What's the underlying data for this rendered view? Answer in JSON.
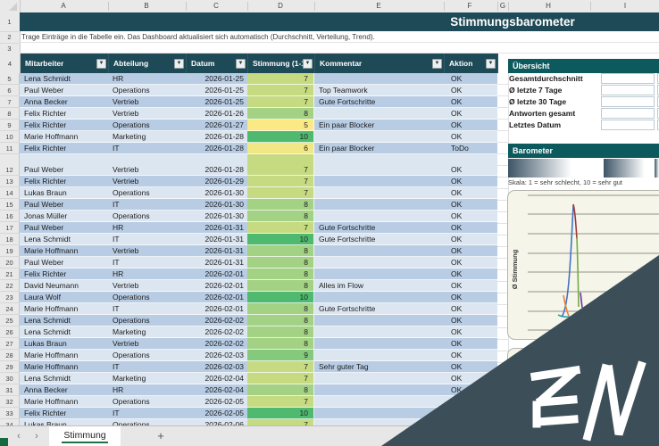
{
  "titlebar": {
    "title": "Stimmungsbarometer"
  },
  "instruction": "Trage Einträge in die Tabelle ein. Das Dashboard aktualisiert sich automatisch (Durchschnitt, Verteilung, Trend).",
  "column_letters": [
    "A",
    "B",
    "C",
    "D",
    "E",
    "F",
    "G",
    "H",
    "I"
  ],
  "gutter_rows": [
    "1",
    "2",
    "3",
    "4"
  ],
  "table": {
    "headers": {
      "mitarbeiter": "Mitarbeiter",
      "abteilung": "Abteilung",
      "datum": "Datum",
      "stimmung": "Stimmung (1-1",
      "kommentar": "Kommentar",
      "aktion": "Aktion"
    },
    "rows": [
      {
        "n": 5,
        "name": "Lena Schmidt",
        "dept": "HR",
        "date": "2026-01-25",
        "mood": 7,
        "comment": "",
        "action": "OK"
      },
      {
        "n": 6,
        "name": "Paul Weber",
        "dept": "Operations",
        "date": "2026-01-25",
        "mood": 7,
        "comment": "Top Teamwork",
        "action": "OK"
      },
      {
        "n": 7,
        "name": "Anna Becker",
        "dept": "Vertrieb",
        "date": "2026-01-25",
        "mood": 7,
        "comment": "Gute Fortschritte",
        "action": "OK"
      },
      {
        "n": 8,
        "name": "Felix Richter",
        "dept": "Vertrieb",
        "date": "2026-01-26",
        "mood": 8,
        "comment": "",
        "action": "OK"
      },
      {
        "n": 9,
        "name": "Felix Richter",
        "dept": "Operations",
        "date": "2026-01-27",
        "mood": 5,
        "comment": "Ein paar Blocker",
        "action": "OK"
      },
      {
        "n": 10,
        "name": "Marie Hoffmann",
        "dept": "Marketing",
        "date": "2026-01-28",
        "mood": 10,
        "comment": "",
        "action": "OK"
      },
      {
        "n": 11,
        "name": "Felix Richter",
        "dept": "IT",
        "date": "2026-01-28",
        "mood": 6,
        "comment": "Ein paar Blocker",
        "action": "ToDo"
      },
      {
        "n": 12,
        "name": "Paul Weber",
        "dept": "Vertrieb",
        "date": "2026-01-28",
        "mood": 7,
        "comment": "",
        "action": "OK",
        "tall": true
      },
      {
        "n": 13,
        "name": "Felix Richter",
        "dept": "Vertrieb",
        "date": "2026-01-29",
        "mood": 7,
        "comment": "",
        "action": "OK"
      },
      {
        "n": 14,
        "name": "Lukas Braun",
        "dept": "Operations",
        "date": "2026-01-30",
        "mood": 7,
        "comment": "",
        "action": "OK"
      },
      {
        "n": 15,
        "name": "Paul Weber",
        "dept": "IT",
        "date": "2026-01-30",
        "mood": 8,
        "comment": "",
        "action": "OK"
      },
      {
        "n": 16,
        "name": "Jonas Müller",
        "dept": "Operations",
        "date": "2026-01-30",
        "mood": 8,
        "comment": "",
        "action": "OK"
      },
      {
        "n": 17,
        "name": "Paul Weber",
        "dept": "HR",
        "date": "2026-01-31",
        "mood": 7,
        "comment": "Gute Fortschritte",
        "action": "OK"
      },
      {
        "n": 18,
        "name": "Lena Schmidt",
        "dept": "IT",
        "date": "2026-01-31",
        "mood": 10,
        "comment": "Gute Fortschritte",
        "action": "OK"
      },
      {
        "n": 19,
        "name": "Marie Hoffmann",
        "dept": "Vertrieb",
        "date": "2026-01-31",
        "mood": 8,
        "comment": "",
        "action": "OK"
      },
      {
        "n": 20,
        "name": "Paul Weber",
        "dept": "IT",
        "date": "2026-01-31",
        "mood": 8,
        "comment": "",
        "action": "OK"
      },
      {
        "n": 21,
        "name": "Felix Richter",
        "dept": "HR",
        "date": "2026-02-01",
        "mood": 8,
        "comment": "",
        "action": "OK"
      },
      {
        "n": 22,
        "name": "David Neumann",
        "dept": "Vertrieb",
        "date": "2026-02-01",
        "mood": 8,
        "comment": "Alles im Flow",
        "action": "OK"
      },
      {
        "n": 23,
        "name": "Laura Wolf",
        "dept": "Operations",
        "date": "2026-02-01",
        "mood": 10,
        "comment": "",
        "action": "OK"
      },
      {
        "n": 24,
        "name": "Marie Hoffmann",
        "dept": "IT",
        "date": "2026-02-01",
        "mood": 8,
        "comment": "Gute Fortschritte",
        "action": "OK"
      },
      {
        "n": 25,
        "name": "Lena Schmidt",
        "dept": "Operations",
        "date": "2026-02-02",
        "mood": 8,
        "comment": "",
        "action": "OK"
      },
      {
        "n": 26,
        "name": "Lena Schmidt",
        "dept": "Marketing",
        "date": "2026-02-02",
        "mood": 8,
        "comment": "",
        "action": "OK"
      },
      {
        "n": 27,
        "name": "Lukas Braun",
        "dept": "Vertrieb",
        "date": "2026-02-02",
        "mood": 8,
        "comment": "",
        "action": "OK"
      },
      {
        "n": 28,
        "name": "Marie Hoffmann",
        "dept": "Operations",
        "date": "2026-02-03",
        "mood": 9,
        "comment": "",
        "action": "OK"
      },
      {
        "n": 29,
        "name": "Marie Hoffmann",
        "dept": "IT",
        "date": "2026-02-03",
        "mood": 7,
        "comment": "Sehr guter Tag",
        "action": "OK"
      },
      {
        "n": 30,
        "name": "Lena Schmidt",
        "dept": "Marketing",
        "date": "2026-02-04",
        "mood": 7,
        "comment": "",
        "action": "OK"
      },
      {
        "n": 31,
        "name": "Anna Becker",
        "dept": "HR",
        "date": "2026-02-04",
        "mood": 8,
        "comment": "",
        "action": "OK"
      },
      {
        "n": 32,
        "name": "Marie Hoffmann",
        "dept": "Operations",
        "date": "2026-02-05",
        "mood": 7,
        "comment": "",
        "action": "OK"
      },
      {
        "n": 33,
        "name": "Felix Richter",
        "dept": "IT",
        "date": "2026-02-05",
        "mood": 10,
        "comment": "",
        "action": ""
      },
      {
        "n": 34,
        "name": "Lukas Braun",
        "dept": "Operations",
        "date": "2026-02-06",
        "mood": 7,
        "comment": "",
        "action": ""
      }
    ]
  },
  "overview": {
    "title": "Übersicht",
    "labels": [
      "Gesamtdurchschnitt",
      "Ø letzte 7 Tage",
      "Ø letzte 30 Tage",
      "Antworten gesamt",
      "Letztes Datum"
    ]
  },
  "barometer": {
    "title": "Barometer",
    "scale_note": "Skala: 1 = sehr schlecht, 10 = sehr gut"
  },
  "chart": {
    "ylabel": "Ø Stimmung"
  },
  "tabs": {
    "active": "Stimmung",
    "add": "+",
    "prev": "‹",
    "next": "›"
  },
  "watermark_logo": "EW",
  "colors": {
    "header_teal": "#1e4956",
    "panel_teal": "#0d5a5e",
    "row_odd": "#b8cce4",
    "row_even": "#dce6f1",
    "tab_green": "#1c7445",
    "watermark": "#3c4e57",
    "chart_bg": "#f6f5e9"
  },
  "stimmung_scale_colors": {
    "5": "#fbe983",
    "6": "#f1e784",
    "7": "#c6db81",
    "8": "#a3d284",
    "9": "#85ca7c",
    "10": "#4fba6f"
  }
}
